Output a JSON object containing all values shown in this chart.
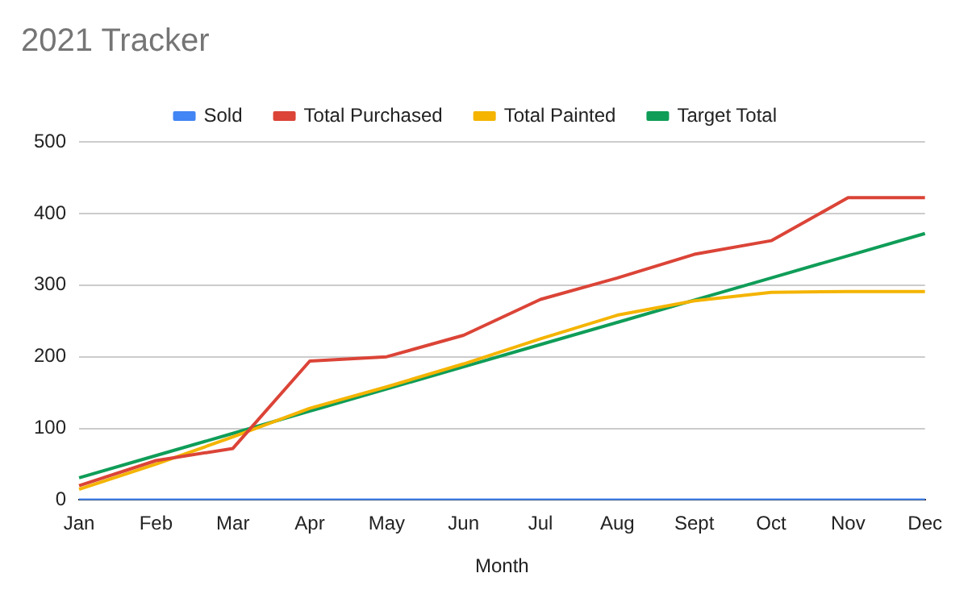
{
  "chart_data": {
    "type": "line",
    "title": "2021 Tracker",
    "xlabel": "Month",
    "categories": [
      "Jan",
      "Feb",
      "Mar",
      "Apr",
      "May",
      "Jun",
      "Jul",
      "Aug",
      "Sept",
      "Oct",
      "Nov",
      "Dec"
    ],
    "series": [
      {
        "name": "Sold",
        "color": "#4285f4",
        "values": [
          0,
          0,
          0,
          0,
          0,
          0,
          0,
          0,
          0,
          0,
          0,
          0
        ]
      },
      {
        "name": "Total Purchased",
        "color": "#db4437",
        "values": [
          20,
          55,
          72,
          194,
          200,
          230,
          280,
          310,
          343,
          362,
          422,
          422
        ]
      },
      {
        "name": "Total Painted",
        "color": "#f4b400",
        "values": [
          15,
          50,
          88,
          128,
          158,
          190,
          225,
          258,
          278,
          290,
          291,
          291
        ]
      },
      {
        "name": "Target Total",
        "color": "#0f9d58",
        "values": [
          31,
          62,
          93,
          124,
          155,
          186,
          217,
          248,
          279,
          310,
          341,
          372
        ]
      }
    ],
    "ylim": [
      0,
      500
    ],
    "yticks": [
      0,
      100,
      200,
      300,
      400,
      500
    ],
    "grid": "y",
    "legend": "top"
  }
}
